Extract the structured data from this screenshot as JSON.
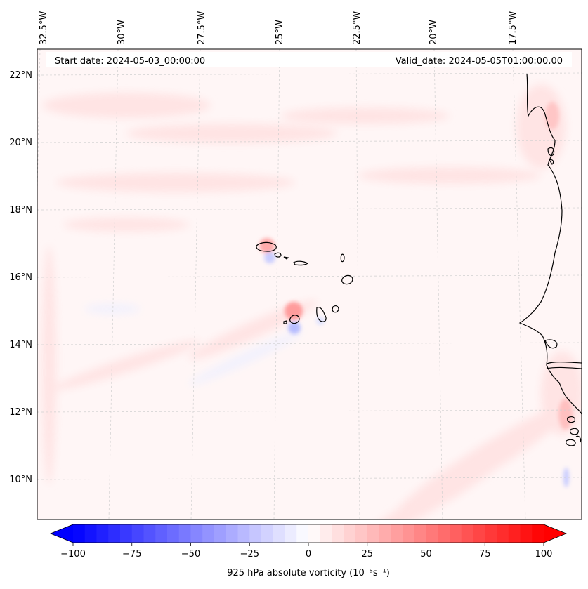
{
  "map": {
    "start_date_label": "Start date: 2024-05-03_00:00:00",
    "valid_date_label": "Valid_date: 2024-05-05T01:00:00.00",
    "lon_labels": [
      "32.5°W",
      "30°W",
      "27.5°W",
      "25°W",
      "22.5°W",
      "20°W",
      "17.5°W"
    ],
    "lat_labels": [
      "22°N",
      "20°N",
      "18°N",
      "16°N",
      "14°N",
      "12°N",
      "10°N"
    ],
    "features": [
      "Cape Verde islands",
      "West African coastline"
    ],
    "colors": {
      "background_field": "#fff5f5",
      "coastline": "#000000",
      "gridline": "#cccccc"
    }
  },
  "colorbar": {
    "label": "925 hPa absolute vorticity (10⁻⁵s⁻¹)",
    "ticks": [
      "−100",
      "−75",
      "−50",
      "−25",
      "0",
      "25",
      "50",
      "75",
      "100"
    ],
    "min": -100,
    "max": 100,
    "levels": 40,
    "extend": "both",
    "colormap": "bwr"
  }
}
